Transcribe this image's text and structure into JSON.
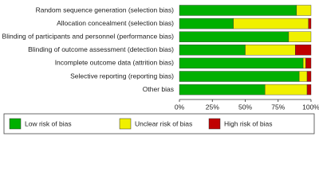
{
  "chart_data": {
    "type": "stacked-bar-horizontal",
    "categories": [
      "Random sequence generation (selection bias)",
      "Allocation concealment (selection bias)",
      "Blinding of participants and personnel (performance bias)",
      "Blinding of outcome assessment (detection bias)",
      "Incomplete outcome data (attrition bias)",
      "Selective reporting (reporting bias)",
      "Other bias"
    ],
    "series": [
      {
        "name": "Low risk of bias",
        "color": "#00b000",
        "values": [
          89,
          41,
          83,
          50,
          94,
          91,
          65
        ]
      },
      {
        "name": "Unclear risk of bias",
        "color": "#f0f000",
        "values": [
          11,
          57,
          17,
          38,
          2,
          6,
          32
        ]
      },
      {
        "name": "High risk of bias",
        "color": "#c00000",
        "values": [
          0,
          2,
          0,
          12,
          4,
          3,
          3
        ]
      }
    ],
    "xlim": [
      0,
      100
    ],
    "xticks": [
      {
        "value": 0,
        "label": "0%"
      },
      {
        "value": 25,
        "label": "25%"
      },
      {
        "value": 50,
        "label": "50%"
      },
      {
        "value": 75,
        "label": "75%"
      },
      {
        "value": 100,
        "label": "100%"
      }
    ],
    "legend": "bottom"
  }
}
